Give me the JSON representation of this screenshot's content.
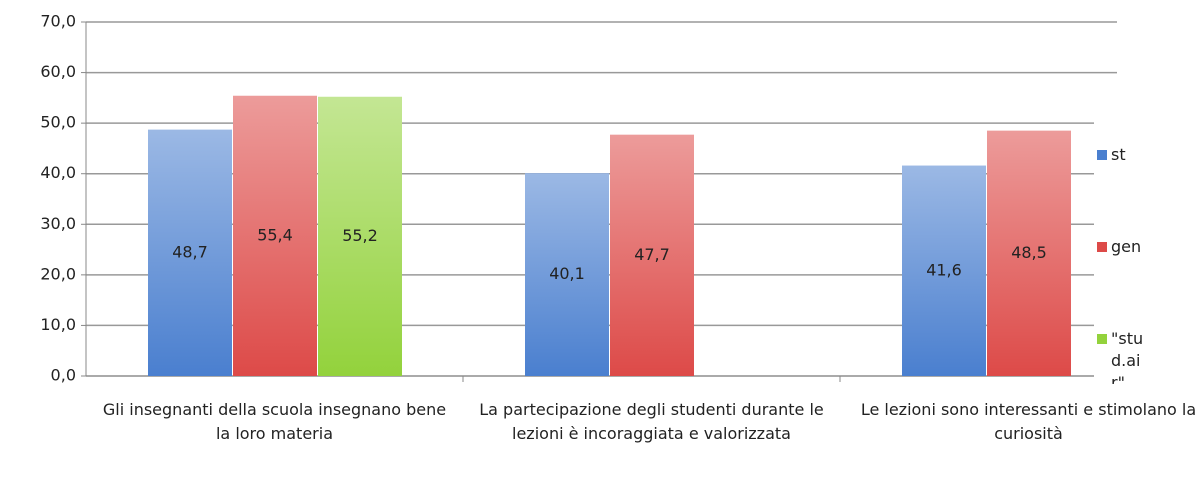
{
  "chart_data": {
    "type": "bar",
    "categories": [
      "Gli insegnanti della scuola insegnano bene la loro materia",
      "La partecipazione degli studenti durante le lezioni è incoraggiata e valorizzata",
      "Le lezioni sono interessanti e stimolano la curiosità"
    ],
    "series": [
      {
        "name": "st",
        "color": "#4a7fcf",
        "values": [
          48.7,
          40.1,
          41.6
        ],
        "value_labels": [
          "48,7",
          "40,1",
          "41,6"
        ]
      },
      {
        "name": "gen",
        "color": "#dd4a48",
        "values": [
          55.4,
          47.7,
          48.5
        ],
        "value_labels": [
          "55,4",
          "47,7",
          "48,5"
        ]
      },
      {
        "name": "\"stud.air\"",
        "color": "#93d23c",
        "values": [
          55.2,
          null,
          null
        ],
        "value_labels": [
          "55,2",
          null,
          null
        ]
      }
    ],
    "ylim": [
      0,
      70
    ],
    "yticks": [
      {
        "value": 0,
        "label": "0,0"
      },
      {
        "value": 10,
        "label": "10,0"
      },
      {
        "value": 20,
        "label": "20,0"
      },
      {
        "value": 30,
        "label": "30,0"
      },
      {
        "value": 40,
        "label": "40,0"
      },
      {
        "value": 50,
        "label": "50,0"
      },
      {
        "value": 60,
        "label": "60,0"
      },
      {
        "value": 70,
        "label": "70,0"
      }
    ],
    "grid": true,
    "legend": "right"
  }
}
